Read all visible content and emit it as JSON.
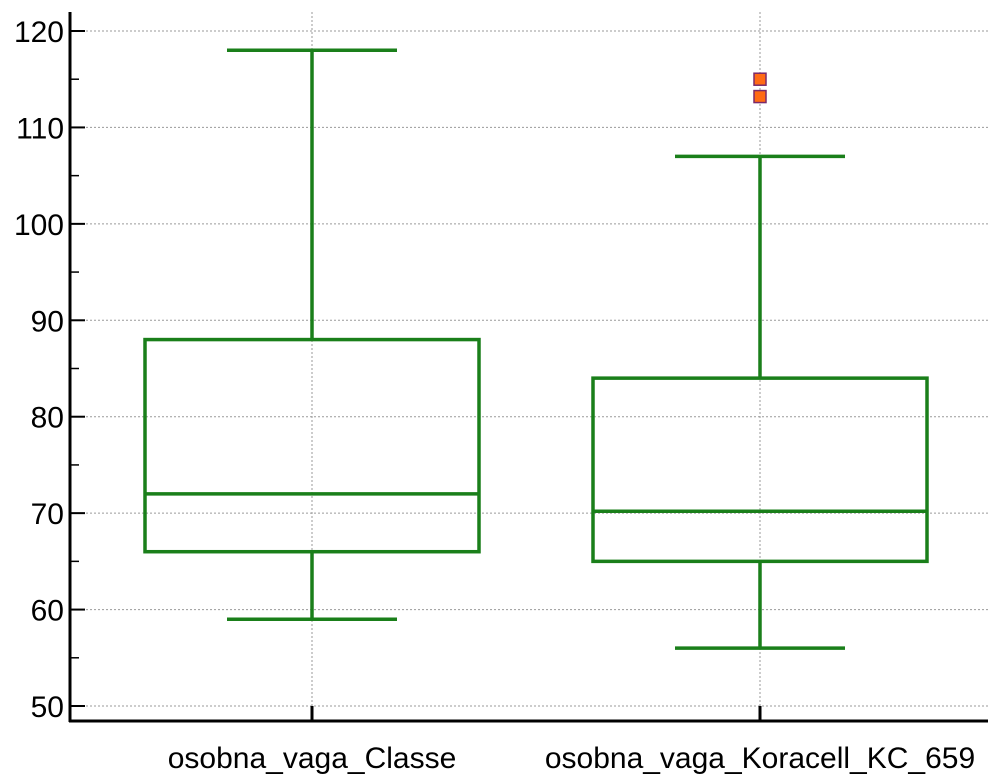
{
  "chart_data": {
    "type": "boxplot",
    "title": "",
    "xlabel": "",
    "ylabel": "",
    "ylim": [
      50,
      122
    ],
    "yticks": [
      50,
      60,
      70,
      80,
      90,
      100,
      110,
      120
    ],
    "ytick_labels": [
      "50",
      "60",
      "70",
      "80",
      "90",
      "100",
      "110",
      "120"
    ],
    "grid": true,
    "legend": "none",
    "categories": [
      "osobna_vaga_Classe",
      "osobna_vaga_Koracell_KC_659"
    ],
    "boxes": [
      {
        "category": "osobna_vaga_Classe",
        "whisker_low": 59,
        "q1": 66,
        "median": 72,
        "q3": 88,
        "whisker_high": 118,
        "outliers": []
      },
      {
        "category": "osobna_vaga_Koracell_KC_659",
        "whisker_low": 56,
        "q1": 65,
        "median": 70.2,
        "q3": 84,
        "whisker_high": 107,
        "outliers": [
          113.2,
          115
        ]
      }
    ],
    "colors": {
      "box": "#1a7f1a",
      "outlier_fill": "#ff6a14",
      "outlier_stroke": "#7a2a6a",
      "grid": "#9a9a9a",
      "axis": "#000000"
    }
  }
}
